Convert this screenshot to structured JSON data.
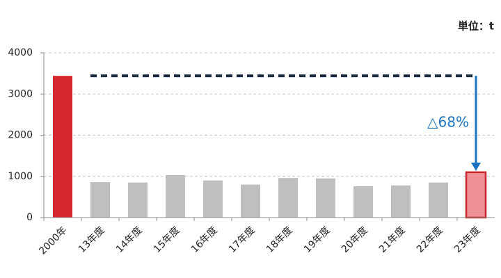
{
  "chart_data": {
    "type": "bar",
    "unit_label": "単位：t",
    "annotation": "△68%",
    "categories": [
      "2000年",
      "13年度",
      "14年度",
      "15年度",
      "16年度",
      "17年度",
      "18年度",
      "19年度",
      "20年度",
      "21年度",
      "22年度",
      "23年度"
    ],
    "values": [
      3440,
      860,
      850,
      1030,
      900,
      800,
      960,
      950,
      760,
      780,
      850,
      1100
    ],
    "colors": [
      "#d7282f",
      "#bfbfbf",
      "#bfbfbf",
      "#bfbfbf",
      "#bfbfbf",
      "#bfbfbf",
      "#bfbfbf",
      "#bfbfbf",
      "#bfbfbf",
      "#bfbfbf",
      "#bfbfbf",
      "#ee8e95"
    ],
    "edgecolors": [
      null,
      null,
      null,
      null,
      null,
      null,
      null,
      null,
      null,
      null,
      null,
      "#c8242c"
    ],
    "reference_color": "#1b2a41",
    "annotation_color": "#1a73c0",
    "ylim": [
      0,
      4000
    ],
    "yticks": [
      0,
      1000,
      2000,
      3000,
      4000
    ],
    "grid": true
  }
}
